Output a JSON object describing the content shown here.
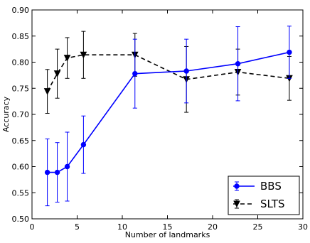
{
  "chart_data": {
    "type": "line",
    "xlabel": "Number of landmarks",
    "ylabel": "Accuracy",
    "xlim": [
      0,
      30
    ],
    "ylim": [
      0.5,
      0.9
    ],
    "xticks": [
      "0",
      "5",
      "10",
      "15",
      "20",
      "25",
      "30"
    ],
    "yticks": [
      "0.50",
      "0.55",
      "0.60",
      "0.65",
      "0.70",
      "0.75",
      "0.80",
      "0.85",
      "0.90"
    ],
    "grid": false,
    "legend_position": "lower right",
    "series": [
      {
        "name": "BBS",
        "color": "#0000ff",
        "line_style": "solid",
        "marker": "circle",
        "x": [
          1.7,
          2.8,
          3.9,
          5.7,
          11.4,
          17.1,
          22.8,
          28.5
        ],
        "y": [
          0.589,
          0.589,
          0.6,
          0.642,
          0.778,
          0.783,
          0.797,
          0.819
        ],
        "err": [
          0.064,
          0.057,
          0.066,
          0.055,
          0.066,
          0.061,
          0.071,
          0.05
        ]
      },
      {
        "name": "SLTS",
        "color": "#000000",
        "line_style": "dashed",
        "marker": "triangle-down",
        "x": [
          1.7,
          2.8,
          3.9,
          5.7,
          11.4,
          17.1,
          22.8,
          28.5
        ],
        "y": [
          0.744,
          0.778,
          0.808,
          0.814,
          0.814,
          0.767,
          0.781,
          0.769
        ],
        "err": [
          0.042,
          0.047,
          0.039,
          0.045,
          0.041,
          0.063,
          0.044,
          0.042
        ]
      }
    ]
  }
}
